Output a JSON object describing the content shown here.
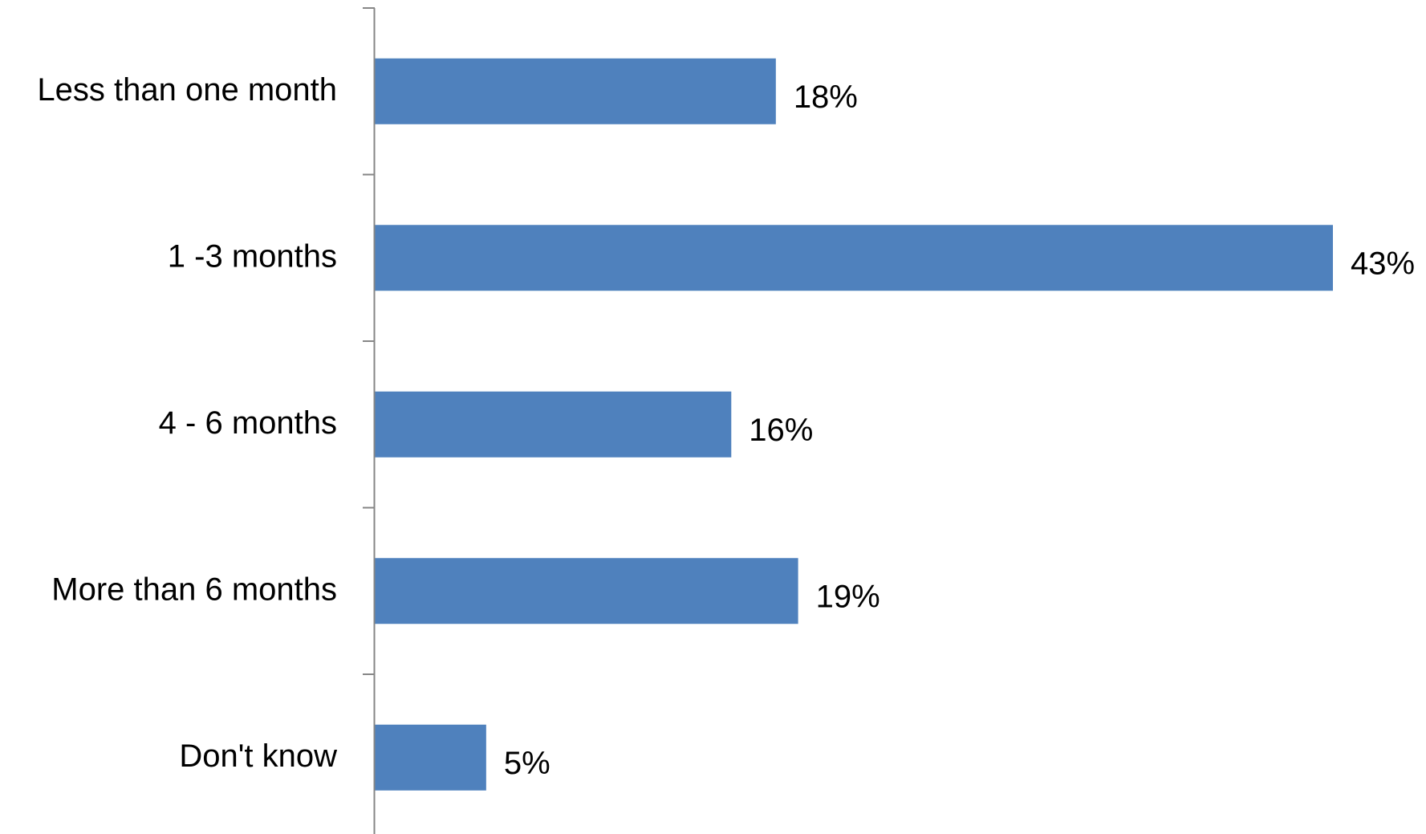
{
  "chart_data": {
    "type": "bar",
    "orientation": "horizontal",
    "categories": [
      "Less than one month",
      "1 -3 months",
      "4 - 6 months",
      "More than 6 months",
      "Don't know"
    ],
    "values": [
      18,
      43,
      16,
      19,
      5
    ],
    "value_labels": [
      "18%",
      "43%",
      "16%",
      "19%",
      "5%"
    ],
    "unit": "%",
    "xlim": [
      0,
      43
    ],
    "title": "",
    "xlabel": "",
    "ylabel": "",
    "grid": false,
    "legend": "none",
    "colors": {
      "bar": "#4F81BD",
      "axis": "#868686",
      "text": "#000000"
    }
  }
}
